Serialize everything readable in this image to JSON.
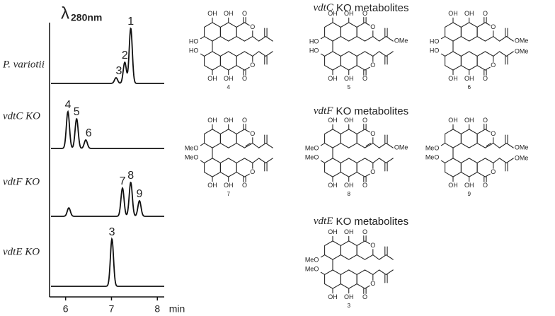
{
  "chromatogram": {
    "detection": {
      "symbol": "λ",
      "subscript": "280nm"
    },
    "xlim": [
      5.65,
      8.15
    ],
    "xticks": [
      6,
      7,
      8
    ],
    "xlabel": "min",
    "traces": [
      {
        "name": "P. variotii",
        "peaks": [
          {
            "label": "3",
            "x": 7.1,
            "height": 8
          },
          {
            "label": "2",
            "x": 7.29,
            "height": 30
          },
          {
            "label": "1",
            "x": 7.42,
            "height": 78
          }
        ]
      },
      {
        "name": "vdtC KO",
        "peaks": [
          {
            "label": "4",
            "x": 6.05,
            "height": 52
          },
          {
            "label": "5",
            "x": 6.24,
            "height": 42
          },
          {
            "label": "6",
            "x": 6.44,
            "height": 12
          }
        ]
      },
      {
        "name": "vdtF KO",
        "peaks": [
          {
            "label": null,
            "x": 6.07,
            "height": 12
          },
          {
            "label": "7",
            "x": 7.24,
            "height": 40
          },
          {
            "label": "8",
            "x": 7.42,
            "height": 48
          },
          {
            "label": "9",
            "x": 7.61,
            "height": 22
          }
        ]
      },
      {
        "name": "vdtE KO",
        "peaks": [
          {
            "label": "3",
            "x": 7.01,
            "height": 67
          }
        ]
      }
    ]
  },
  "structures": {
    "sections": [
      {
        "gene": "vdtC",
        "text": " KO metabolites",
        "compounds": [
          {
            "number": "4",
            "hydroxyls": [
              "OH",
              "OH",
              "OH",
              "OH"
            ],
            "oxygens": [
              "O",
              "O",
              "O",
              "O"
            ],
            "left": [
              "HO",
              "HO"
            ],
            "left_color": "#c0282d",
            "ends": [
              null,
              null
            ],
            "highlight": null,
            "end_color": null
          },
          {
            "number": "5",
            "hydroxyls": [
              "OH",
              "OH",
              "OH",
              "OH"
            ],
            "oxygens": [
              "O",
              "O",
              "O",
              "O"
            ],
            "left": [
              "HO",
              "HO"
            ],
            "left_color": "#c0282d",
            "ends": [
              "OMe",
              null
            ],
            "highlight": null,
            "end_color": null
          },
          {
            "number": "6",
            "hydroxyls": [
              "OH",
              "OH",
              "OH",
              "OH"
            ],
            "oxygens": [
              "O",
              "O",
              "O",
              "O"
            ],
            "left": [
              "HO",
              "HO"
            ],
            "left_color": "#c0282d",
            "ends": [
              "OMe",
              "OMe"
            ],
            "highlight": null,
            "end_color": null
          }
        ]
      },
      {
        "gene": "vdtF",
        "text": " KO metabolites",
        "compounds": [
          {
            "number": "7",
            "hydroxyls": [
              "OH",
              "OH",
              "OH",
              "OH"
            ],
            "oxygens": [
              "O",
              "O",
              "O",
              "O"
            ],
            "left": [
              "MeO",
              "MeO"
            ],
            "left_color": "#222222",
            "ends": [
              null,
              null
            ],
            "highlight": "#2a9d4e",
            "end_color": null
          },
          {
            "number": "8",
            "hydroxyls": [
              "OH",
              "OH",
              "OH",
              "OH"
            ],
            "oxygens": [
              "O",
              "O",
              "O",
              "O"
            ],
            "left": [
              "MeO",
              "MeO"
            ],
            "left_color": "#222222",
            "ends": [
              "OMe",
              null
            ],
            "highlight": "#2a9d4e",
            "end_color": null
          },
          {
            "number": "9",
            "hydroxyls": [
              "OH",
              "OH",
              "OH",
              "OH"
            ],
            "oxygens": [
              "O",
              "O",
              "O",
              "O"
            ],
            "left": [
              "MeO",
              "MeO"
            ],
            "left_color": "#222222",
            "ends": [
              "OMe",
              "OMe"
            ],
            "highlight": "#2a9d4e",
            "end_color": null
          }
        ]
      },
      {
        "gene": "vdtE",
        "text": " KO metabolites",
        "compounds": [
          {
            "number": "3",
            "hydroxyls": [
              "OH",
              "OH",
              "OH",
              "OH"
            ],
            "oxygens": [
              "O",
              "O",
              "O",
              "O"
            ],
            "left": [
              "MeO",
              "MeO"
            ],
            "left_color": "#222222",
            "ends": [
              null,
              null
            ],
            "highlight": null,
            "end_color": "#7b3f8c"
          }
        ]
      }
    ]
  }
}
